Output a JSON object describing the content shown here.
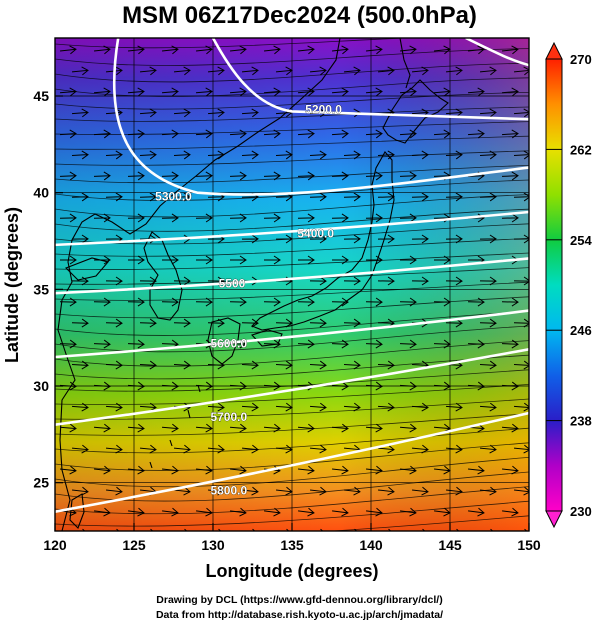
{
  "title": "MSM 06Z17Dec2024 (500.0hPa)",
  "x_axis": {
    "label": "Longitude (degrees)",
    "min": 120,
    "max": 150,
    "ticks": [
      "120",
      "125",
      "130",
      "135",
      "140",
      "145",
      "150"
    ]
  },
  "y_axis": {
    "label": "Latitude  (degrees)",
    "min": 22.5,
    "max": 48,
    "ticks": [
      "25",
      "30",
      "35",
      "40",
      "45"
    ]
  },
  "colorbar": {
    "min": 230,
    "max": 270,
    "ticks": [
      "230",
      "238",
      "246",
      "254",
      "262",
      "270"
    ],
    "colors": [
      "#ff00c8",
      "#8a00c8",
      "#2020c8",
      "#00a0ff",
      "#00dcdc",
      "#00d060",
      "#90e000",
      "#e0e000",
      "#ff9000",
      "#ff2000"
    ]
  },
  "contours": [
    {
      "label": "5200.0",
      "lat_start": 44.0,
      "lat_end": 43.8
    },
    {
      "label": "5300.0",
      "lat_start": 39.6,
      "lat_end": 41.3
    },
    {
      "label": "5400.0",
      "lat_start": 37.3,
      "lat_end": 39.0
    },
    {
      "label": "5500",
      "lat_start": 34.8,
      "lat_end": 36.6
    },
    {
      "label": "5600.0",
      "lat_start": 31.5,
      "lat_end": 33.9
    },
    {
      "label": "5700.0",
      "lat_start": 28.0,
      "lat_end": 31.9
    },
    {
      "label": "5800.0",
      "lat_start": 23.5,
      "lat_end": 28.6
    }
  ],
  "footer": {
    "line1": "Drawing by DCL (https://www.gfd-dennou.org/library/dcl/)",
    "line2": "Data from http://database.rish.kyoto-u.ac.jp/arch/jmadata/"
  }
}
